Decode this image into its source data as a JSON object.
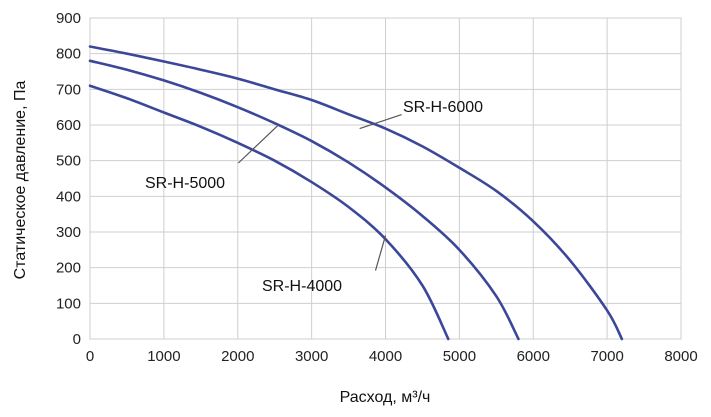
{
  "chart_data": {
    "type": "line",
    "title": "",
    "xlabel": "Расход, м³/ч",
    "ylabel": "Статическое давление, Па",
    "xlim": [
      0,
      8000
    ],
    "ylim": [
      0,
      900
    ],
    "xticks": [
      0,
      1000,
      2000,
      3000,
      4000,
      5000,
      6000,
      7000,
      8000
    ],
    "yticks": [
      0,
      100,
      200,
      300,
      400,
      500,
      600,
      700,
      800,
      900
    ],
    "grid": true,
    "line_color": "#3b4799",
    "series": [
      {
        "name": "SR-H-4000",
        "x": [
          0,
          500,
          1000,
          1500,
          2000,
          2500,
          3000,
          3500,
          4000,
          4500,
          4850
        ],
        "y": [
          710,
          675,
          635,
          595,
          550,
          500,
          440,
          370,
          280,
          150,
          0
        ],
        "label_at": [
          4000,
          290
        ]
      },
      {
        "name": "SR-H-5000",
        "x": [
          0,
          500,
          1000,
          1500,
          2000,
          2500,
          3000,
          3500,
          4000,
          4500,
          5000,
          5500,
          5800
        ],
        "y": [
          780,
          755,
          725,
          690,
          650,
          605,
          555,
          495,
          425,
          345,
          250,
          120,
          0
        ],
        "label_at": [
          2550,
          600
        ]
      },
      {
        "name": "SR-H-6000",
        "x": [
          0,
          500,
          1000,
          1500,
          2000,
          2500,
          3000,
          3500,
          4000,
          4500,
          5000,
          5500,
          6000,
          6500,
          7000,
          7200
        ],
        "y": [
          820,
          800,
          778,
          755,
          730,
          700,
          670,
          630,
          590,
          540,
          480,
          415,
          330,
          220,
          80,
          0
        ],
        "label_at": [
          3650,
          590
        ]
      }
    ]
  }
}
